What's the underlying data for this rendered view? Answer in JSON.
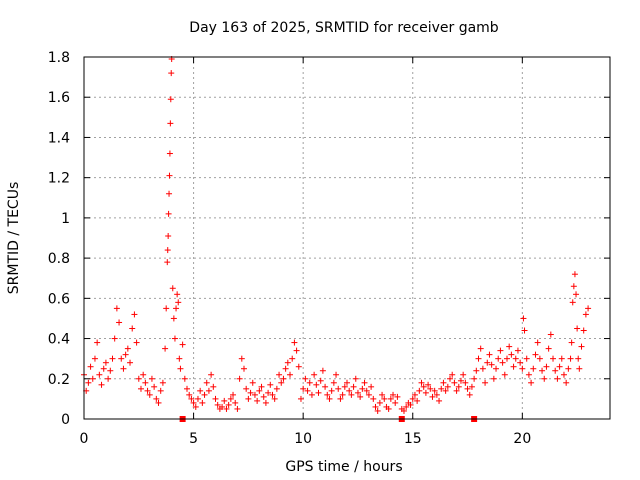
{
  "chart_data": {
    "type": "scatter",
    "title": "Day 163 of 2025, SRMTID for receiver gamb",
    "xlabel": "GPS time / hours",
    "ylabel": "SRMTID / TECUs",
    "xlim": [
      0,
      24
    ],
    "ylim": [
      0,
      1.8
    ],
    "grid": true,
    "marker_color": "#ff0000",
    "x_ticks": [
      {
        "value": 0,
        "label": "0"
      },
      {
        "value": 5,
        "label": "5"
      },
      {
        "value": 10,
        "label": "10"
      },
      {
        "value": 15,
        "label": "15"
      },
      {
        "value": 20,
        "label": "20"
      }
    ],
    "y_ticks": [
      {
        "value": 0,
        "label": "0"
      },
      {
        "value": 0.2,
        "label": "0.2"
      },
      {
        "value": 0.4,
        "label": "0.4"
      },
      {
        "value": 0.6,
        "label": "0.6"
      },
      {
        "value": 0.8,
        "label": "0.8"
      },
      {
        "value": 1.0,
        "label": "1"
      },
      {
        "value": 1.2,
        "label": "1.2"
      },
      {
        "value": 1.4,
        "label": "1.4"
      },
      {
        "value": 1.6,
        "label": "1.6"
      },
      {
        "value": 1.8,
        "label": "1.8"
      }
    ],
    "series": [
      {
        "name": "SRMTID",
        "points": [
          [
            0.0,
            0.22
          ],
          [
            0.1,
            0.14
          ],
          [
            0.2,
            0.18
          ],
          [
            0.3,
            0.26
          ],
          [
            0.4,
            0.2
          ],
          [
            0.5,
            0.3
          ],
          [
            0.6,
            0.38
          ],
          [
            0.7,
            0.22
          ],
          [
            0.8,
            0.17
          ],
          [
            0.9,
            0.25
          ],
          [
            1.0,
            0.28
          ],
          [
            1.1,
            0.2
          ],
          [
            1.2,
            0.24
          ],
          [
            1.3,
            0.3
          ],
          [
            1.4,
            0.4
          ],
          [
            1.5,
            0.55
          ],
          [
            1.6,
            0.48
          ],
          [
            1.7,
            0.3
          ],
          [
            1.8,
            0.25
          ],
          [
            1.9,
            0.32
          ],
          [
            2.0,
            0.35
          ],
          [
            2.1,
            0.28
          ],
          [
            2.2,
            0.45
          ],
          [
            2.3,
            0.52
          ],
          [
            2.4,
            0.38
          ],
          [
            2.5,
            0.2
          ],
          [
            2.6,
            0.15
          ],
          [
            2.7,
            0.22
          ],
          [
            2.8,
            0.18
          ],
          [
            2.9,
            0.14
          ],
          [
            3.0,
            0.12
          ],
          [
            3.1,
            0.2
          ],
          [
            3.2,
            0.16
          ],
          [
            3.3,
            0.1
          ],
          [
            3.4,
            0.08
          ],
          [
            3.5,
            0.14
          ],
          [
            3.6,
            0.18
          ],
          [
            3.7,
            0.35
          ],
          [
            3.75,
            0.55
          ],
          [
            3.8,
            0.78
          ],
          [
            3.82,
            0.84
          ],
          [
            3.84,
            0.91
          ],
          [
            3.86,
            1.02
          ],
          [
            3.88,
            1.12
          ],
          [
            3.9,
            1.21
          ],
          [
            3.92,
            1.32
          ],
          [
            3.94,
            1.47
          ],
          [
            3.96,
            1.59
          ],
          [
            3.98,
            1.72
          ],
          [
            4.0,
            1.79
          ],
          [
            4.05,
            0.65
          ],
          [
            4.1,
            0.5
          ],
          [
            4.15,
            0.4
          ],
          [
            4.2,
            0.55
          ],
          [
            4.25,
            0.62
          ],
          [
            4.3,
            0.58
          ],
          [
            4.35,
            0.3
          ],
          [
            4.4,
            0.25
          ],
          [
            4.5,
            0.37
          ],
          [
            4.6,
            0.2
          ],
          [
            4.7,
            0.15
          ],
          [
            4.8,
            0.12
          ],
          [
            4.9,
            0.1
          ],
          [
            5.0,
            0.08
          ],
          [
            5.1,
            0.06
          ],
          [
            5.2,
            0.1
          ],
          [
            5.3,
            0.14
          ],
          [
            5.4,
            0.08
          ],
          [
            5.5,
            0.12
          ],
          [
            5.6,
            0.18
          ],
          [
            5.7,
            0.14
          ],
          [
            5.8,
            0.22
          ],
          [
            5.9,
            0.16
          ],
          [
            6.0,
            0.1
          ],
          [
            6.1,
            0.07
          ],
          [
            6.2,
            0.05
          ],
          [
            6.3,
            0.06
          ],
          [
            6.4,
            0.09
          ],
          [
            6.5,
            0.05
          ],
          [
            6.6,
            0.07
          ],
          [
            6.7,
            0.1
          ],
          [
            6.8,
            0.12
          ],
          [
            6.9,
            0.08
          ],
          [
            7.0,
            0.05
          ],
          [
            7.1,
            0.2
          ],
          [
            7.2,
            0.3
          ],
          [
            7.3,
            0.25
          ],
          [
            7.4,
            0.15
          ],
          [
            7.5,
            0.1
          ],
          [
            7.6,
            0.13
          ],
          [
            7.7,
            0.18
          ],
          [
            7.8,
            0.12
          ],
          [
            7.9,
            0.09
          ],
          [
            8.0,
            0.14
          ],
          [
            8.1,
            0.16
          ],
          [
            8.2,
            0.11
          ],
          [
            8.3,
            0.08
          ],
          [
            8.4,
            0.13
          ],
          [
            8.5,
            0.17
          ],
          [
            8.6,
            0.12
          ],
          [
            8.7,
            0.1
          ],
          [
            8.8,
            0.15
          ],
          [
            8.9,
            0.22
          ],
          [
            9.0,
            0.18
          ],
          [
            9.1,
            0.2
          ],
          [
            9.2,
            0.25
          ],
          [
            9.3,
            0.28
          ],
          [
            9.4,
            0.22
          ],
          [
            9.5,
            0.3
          ],
          [
            9.6,
            0.38
          ],
          [
            9.7,
            0.34
          ],
          [
            9.8,
            0.26
          ],
          [
            9.9,
            0.1
          ],
          [
            10.0,
            0.15
          ],
          [
            10.1,
            0.2
          ],
          [
            10.2,
            0.14
          ],
          [
            10.3,
            0.18
          ],
          [
            10.4,
            0.12
          ],
          [
            10.5,
            0.22
          ],
          [
            10.6,
            0.17
          ],
          [
            10.7,
            0.13
          ],
          [
            10.8,
            0.19
          ],
          [
            10.9,
            0.24
          ],
          [
            11.0,
            0.16
          ],
          [
            11.1,
            0.12
          ],
          [
            11.2,
            0.1
          ],
          [
            11.3,
            0.14
          ],
          [
            11.4,
            0.18
          ],
          [
            11.5,
            0.22
          ],
          [
            11.6,
            0.15
          ],
          [
            11.7,
            0.1
          ],
          [
            11.8,
            0.12
          ],
          [
            11.9,
            0.16
          ],
          [
            12.0,
            0.18
          ],
          [
            12.1,
            0.14
          ],
          [
            12.2,
            0.12
          ],
          [
            12.3,
            0.16
          ],
          [
            12.4,
            0.2
          ],
          [
            12.5,
            0.13
          ],
          [
            12.6,
            0.11
          ],
          [
            12.7,
            0.15
          ],
          [
            12.8,
            0.18
          ],
          [
            12.9,
            0.14
          ],
          [
            13.0,
            0.12
          ],
          [
            13.1,
            0.16
          ],
          [
            13.2,
            0.1
          ],
          [
            13.3,
            0.06
          ],
          [
            13.4,
            0.04
          ],
          [
            13.5,
            0.08
          ],
          [
            13.6,
            0.12
          ],
          [
            13.7,
            0.1
          ],
          [
            13.8,
            0.06
          ],
          [
            13.9,
            0.05
          ],
          [
            14.0,
            0.1
          ],
          [
            14.1,
            0.12
          ],
          [
            14.2,
            0.08
          ],
          [
            14.3,
            0.11
          ],
          [
            14.5,
            0.05
          ],
          [
            14.6,
            0.04
          ],
          [
            14.7,
            0.06
          ],
          [
            14.8,
            0.08
          ],
          [
            14.9,
            0.07
          ],
          [
            15.0,
            0.1
          ],
          [
            15.1,
            0.12
          ],
          [
            15.2,
            0.09
          ],
          [
            15.3,
            0.14
          ],
          [
            15.4,
            0.18
          ],
          [
            15.5,
            0.16
          ],
          [
            15.6,
            0.13
          ],
          [
            15.7,
            0.17
          ],
          [
            15.8,
            0.15
          ],
          [
            15.9,
            0.11
          ],
          [
            16.0,
            0.14
          ],
          [
            16.1,
            0.12
          ],
          [
            16.2,
            0.09
          ],
          [
            16.3,
            0.15
          ],
          [
            16.4,
            0.18
          ],
          [
            16.5,
            0.14
          ],
          [
            16.6,
            0.16
          ],
          [
            16.7,
            0.2
          ],
          [
            16.8,
            0.22
          ],
          [
            16.9,
            0.18
          ],
          [
            17.0,
            0.14
          ],
          [
            17.1,
            0.16
          ],
          [
            17.2,
            0.19
          ],
          [
            17.3,
            0.22
          ],
          [
            17.4,
            0.18
          ],
          [
            17.5,
            0.15
          ],
          [
            17.6,
            0.12
          ],
          [
            17.7,
            0.16
          ],
          [
            17.8,
            0.2
          ],
          [
            17.9,
            0.24
          ],
          [
            18.0,
            0.3
          ],
          [
            18.1,
            0.35
          ],
          [
            18.2,
            0.25
          ],
          [
            18.3,
            0.18
          ],
          [
            18.4,
            0.28
          ],
          [
            18.5,
            0.32
          ],
          [
            18.6,
            0.27
          ],
          [
            18.7,
            0.2
          ],
          [
            18.8,
            0.25
          ],
          [
            18.9,
            0.3
          ],
          [
            19.0,
            0.34
          ],
          [
            19.1,
            0.28
          ],
          [
            19.2,
            0.22
          ],
          [
            19.3,
            0.3
          ],
          [
            19.4,
            0.36
          ],
          [
            19.5,
            0.32
          ],
          [
            19.6,
            0.26
          ],
          [
            19.7,
            0.3
          ],
          [
            19.8,
            0.34
          ],
          [
            19.9,
            0.28
          ],
          [
            20.0,
            0.25
          ],
          [
            20.05,
            0.5
          ],
          [
            20.1,
            0.44
          ],
          [
            20.2,
            0.3
          ],
          [
            20.3,
            0.22
          ],
          [
            20.4,
            0.18
          ],
          [
            20.5,
            0.25
          ],
          [
            20.6,
            0.32
          ],
          [
            20.7,
            0.38
          ],
          [
            20.8,
            0.3
          ],
          [
            20.9,
            0.24
          ],
          [
            21.0,
            0.2
          ],
          [
            21.1,
            0.26
          ],
          [
            21.2,
            0.35
          ],
          [
            21.3,
            0.42
          ],
          [
            21.4,
            0.3
          ],
          [
            21.5,
            0.24
          ],
          [
            21.6,
            0.2
          ],
          [
            21.7,
            0.26
          ],
          [
            21.8,
            0.3
          ],
          [
            21.9,
            0.22
          ],
          [
            22.0,
            0.18
          ],
          [
            22.1,
            0.25
          ],
          [
            22.2,
            0.3
          ],
          [
            22.25,
            0.38
          ],
          [
            22.3,
            0.58
          ],
          [
            22.35,
            0.66
          ],
          [
            22.4,
            0.72
          ],
          [
            22.45,
            0.62
          ],
          [
            22.5,
            0.45
          ],
          [
            22.55,
            0.3
          ],
          [
            22.6,
            0.25
          ],
          [
            22.7,
            0.36
          ],
          [
            22.8,
            0.44
          ],
          [
            22.9,
            0.52
          ],
          [
            23.0,
            0.55
          ]
        ]
      }
    ],
    "zero_markers_x": [
      4.5,
      14.5,
      17.8
    ]
  }
}
